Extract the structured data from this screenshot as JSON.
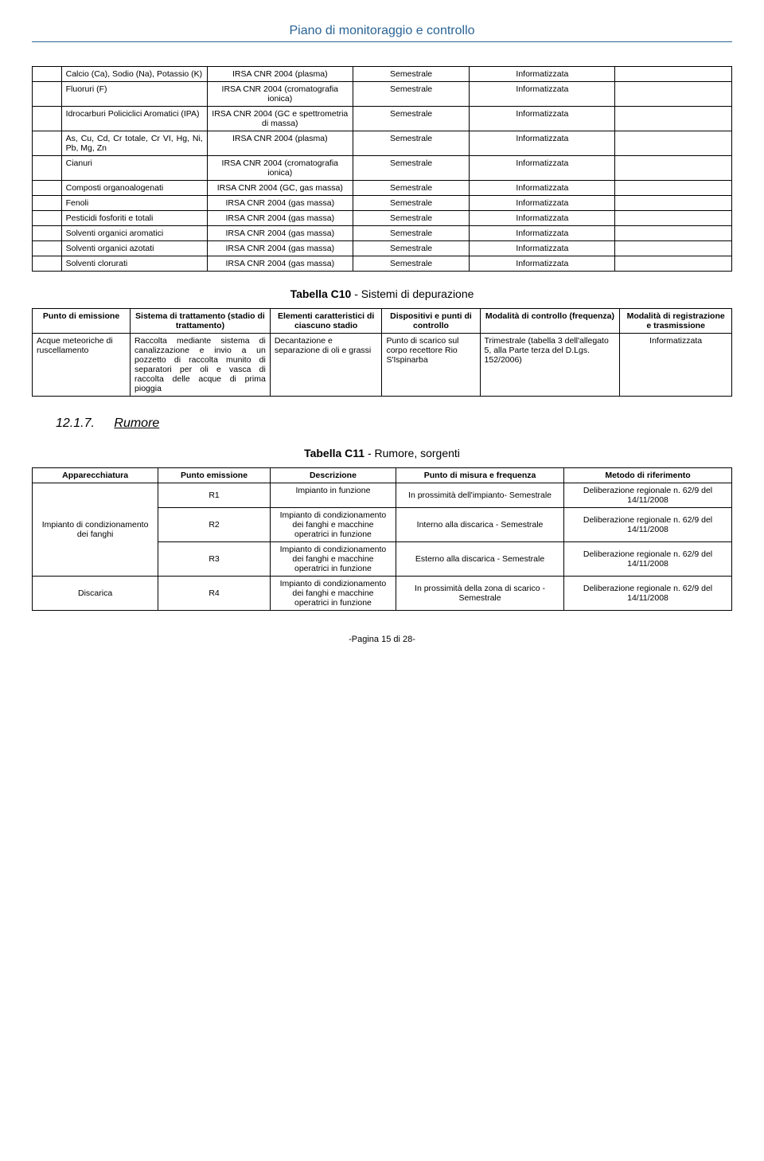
{
  "header": {
    "title": "Piano di monitoraggio e controllo"
  },
  "table1": {
    "rows": [
      {
        "c1": "Calcio (Ca), Sodio (Na), Potassio (K)",
        "c2": "IRSA CNR 2004 (plasma)",
        "c3": "Semestrale",
        "c4": "Informatizzata"
      },
      {
        "c1": "Fluoruri (F)",
        "c2": "IRSA CNR 2004 (cromatografia ionica)",
        "c3": "Semestrale",
        "c4": "Informatizzata"
      },
      {
        "c1": "Idrocarburi Policiclici Aromatici (IPA)",
        "c2": "IRSA CNR 2004 (GC e spettrometria di massa)",
        "c3": "Semestrale",
        "c4": "Informatizzata"
      },
      {
        "c1": "As, Cu, Cd, Cr totale, Cr VI, Hg, Ni, Pb, Mg, Zn",
        "c2": "IRSA CNR 2004 (plasma)",
        "c3": "Semestrale",
        "c4": "Informatizzata"
      },
      {
        "c1": "Cianuri",
        "c2": "IRSA CNR 2004 (cromatografia ionica)",
        "c3": "Semestrale",
        "c4": "Informatizzata"
      },
      {
        "c1": "Composti organoalogenati",
        "c2": "IRSA CNR 2004 (GC, gas massa)",
        "c3": "Semestrale",
        "c4": "Informatizzata"
      },
      {
        "c1": "Fenoli",
        "c2": "IRSA CNR 2004 (gas massa)",
        "c3": "Semestrale",
        "c4": "Informatizzata"
      },
      {
        "c1": "Pesticidi fosforiti e totali",
        "c2": "IRSA CNR 2004 (gas massa)",
        "c3": "Semestrale",
        "c4": "Informatizzata"
      },
      {
        "c1": "Solventi organici aromatici",
        "c2": "IRSA CNR 2004 (gas massa)",
        "c3": "Semestrale",
        "c4": "Informatizzata"
      },
      {
        "c1": "Solventi organici azotati",
        "c2": "IRSA CNR 2004 (gas massa)",
        "c3": "Semestrale",
        "c4": "Informatizzata"
      },
      {
        "c1": "Solventi clorurati",
        "c2": "IRSA CNR 2004 (gas massa)",
        "c3": "Semestrale",
        "c4": "Informatizzata"
      }
    ]
  },
  "caption1": {
    "prefix": "Tabella C10",
    "rest": " - Sistemi di depurazione"
  },
  "table2": {
    "headers": {
      "h1": "Punto di emissione",
      "h2": "Sistema di trattamento (stadio di trattamento)",
      "h3": "Elementi caratteristici di ciascuno stadio",
      "h4": "Dispositivi e punti di controllo",
      "h5": "Modalità di controllo (frequenza)",
      "h6": "Modalità di registrazione e trasmissione"
    },
    "row": {
      "c1": "Acque meteoriche di ruscellamento",
      "c2": "Raccolta mediante sistema di canalizzazione e invio a un pozzetto di raccolta munito di separatori per oli e vasca di raccolta delle acque di prima pioggia",
      "c3": "Decantazione e separazione di oli e grassi",
      "c4": "Punto di scarico sul corpo recettore Rio S'Ispinarba",
      "c5": "Trimestrale (tabella 3 dell'allegato 5, alla Parte terza del D.Lgs. 152/2006)",
      "c6": "Informatizzata"
    }
  },
  "section": {
    "num": "12.1.7.",
    "title": "Rumore"
  },
  "caption2": {
    "prefix": "Tabella C11",
    "rest": " - Rumore, sorgenti"
  },
  "table3": {
    "headers": {
      "h1": "Apparecchiatura",
      "h2": "Punto emissione",
      "h3": "Descrizione",
      "h4": "Punto di misura e frequenza",
      "h5": "Metodo di riferimento"
    },
    "rows": [
      {
        "c1": "Impianto di condizionamento dei fanghi",
        "rows": [
          {
            "c2": "R1",
            "c3": "Impianto in funzione",
            "c4": "In prossimità dell'impianto- Semestrale",
            "c5": "Deliberazione regionale n. 62/9 del 14/11/2008"
          },
          {
            "c2": "R2",
            "c3": "Impianto di condizionamento dei fanghi e macchine operatrici in funzione",
            "c4": "Interno alla discarica - Semestrale",
            "c5": "Deliberazione regionale n. 62/9 del 14/11/2008"
          },
          {
            "c2": "R3",
            "c3": "Impianto di condizionamento dei fanghi e macchine operatrici in funzione",
            "c4": "Esterno alla discarica - Semestrale",
            "c5": "Deliberazione regionale n. 62/9 del 14/11/2008"
          }
        ]
      },
      {
        "c1": "Discarica",
        "rows": [
          {
            "c2": "R4",
            "c3": "Impianto di condizionamento dei fanghi e macchine operatrici in funzione",
            "c4": "In prossimità della zona di scarico - Semestrale",
            "c5": "Deliberazione regionale n. 62/9 del 14/11/2008"
          }
        ]
      }
    ]
  },
  "footer": {
    "text": "-Pagina 15 di 28-"
  }
}
